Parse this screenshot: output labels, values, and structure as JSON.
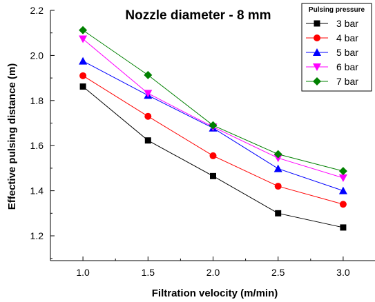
{
  "chart_data": {
    "type": "line",
    "title": "Nozzle diameter - 8 mm",
    "xlabel": "Filtration velocity (m/min)",
    "ylabel": "Effective pulsing distance (m)",
    "x": [
      1.0,
      1.5,
      2.0,
      2.5,
      3.0
    ],
    "x_tick_labels": [
      "1.0",
      "1.5",
      "2.0",
      "2.5",
      "3.0"
    ],
    "y_tick_values": [
      1.2,
      1.4,
      1.6,
      1.8,
      2.0,
      2.2
    ],
    "y_tick_labels": [
      "1.2",
      "1.4",
      "1.6",
      "1.8",
      "2.0",
      "2.2"
    ],
    "xlim": [
      0.75,
      3.25
    ],
    "ylim": [
      1.09,
      2.2
    ],
    "grid": false,
    "legend_title": "Pulsing pressure",
    "legend_position": "top-right",
    "series": [
      {
        "name": "3 bar",
        "color": "#000000",
        "marker": "square",
        "values": [
          1.862,
          1.623,
          1.465,
          1.3,
          1.237
        ]
      },
      {
        "name": "4 bar",
        "color": "#ff0000",
        "marker": "circle",
        "values": [
          1.91,
          1.73,
          1.555,
          1.42,
          1.34
        ]
      },
      {
        "name": "5 bar",
        "color": "#0000ff",
        "marker": "triangle-up",
        "values": [
          1.975,
          1.823,
          1.678,
          1.498,
          1.4
        ]
      },
      {
        "name": "6 bar",
        "color": "#ff00ff",
        "marker": "triangle-down",
        "values": [
          2.073,
          1.832,
          1.683,
          1.545,
          1.457
        ]
      },
      {
        "name": "7 bar",
        "color": "#008000",
        "marker": "diamond",
        "values": [
          2.112,
          1.913,
          1.69,
          1.562,
          1.487
        ]
      }
    ]
  }
}
